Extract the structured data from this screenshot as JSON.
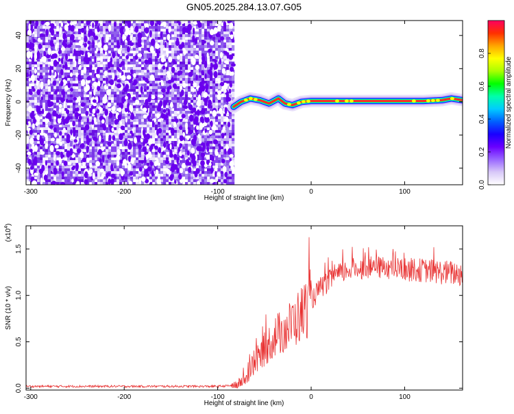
{
  "title": "GN05.2025.284.13.07.G05",
  "chart_data": [
    {
      "type": "heatmap",
      "title": "GN05.2025.284.13.07.G05",
      "xlabel": "Height of straight line (km)",
      "ylabel": "Frequency (Hz)",
      "xlim": [
        -305,
        162
      ],
      "ylim": [
        -50,
        49
      ],
      "xticks": [
        -300,
        -200,
        -100,
        0,
        100
      ],
      "yticks": [
        -40,
        -20,
        0,
        20,
        40
      ],
      "noise_region_end_km": -83,
      "signal_track": {
        "x": [
          -83,
          -75,
          -65,
          -55,
          -45,
          -35,
          -28,
          -20,
          -10,
          0,
          20,
          40,
          60,
          80,
          100,
          120,
          140,
          150,
          162
        ],
        "y": [
          -3,
          0,
          2,
          1,
          -1,
          2,
          -1,
          -2,
          0,
          0.5,
          0.5,
          0.5,
          0.5,
          0.5,
          0.5,
          0.5,
          1,
          2,
          1
        ]
      },
      "colorbar": {
        "label": "Normalized spectral amplitude",
        "range": [
          0,
          1
        ],
        "ticks": [
          "0.0",
          "0.2",
          "0.4",
          "0.6",
          "0.8"
        ],
        "colormap": [
          "#ffffff",
          "#d8c8f8",
          "#9966ff",
          "#6a00ff",
          "#1a00ff",
          "#0060ff",
          "#00ccff",
          "#00ffaa",
          "#00ff00",
          "#aaff00",
          "#ffff00",
          "#ffa500",
          "#ff3000",
          "#ff0060"
        ]
      }
    },
    {
      "type": "line",
      "xlabel": "Height of straight line (km)",
      "ylabel": "SNR (10 * v/v)",
      "scale_label": "(x10",
      "scale_exponent": "4",
      "xlim": [
        -305,
        162
      ],
      "ylim": [
        -0.02,
        1.75
      ],
      "xticks": [
        -300,
        -200,
        -100,
        0,
        100
      ],
      "yticks": [
        "0.0",
        "0.5",
        "1.0",
        "1.5"
      ],
      "color": "#e83030",
      "trend": {
        "x": [
          -305,
          -100,
          -80,
          -70,
          -55,
          -40,
          -25,
          -10,
          0,
          10,
          25,
          40,
          60,
          80,
          100,
          120,
          140,
          162
        ],
        "y": [
          0.02,
          0.02,
          0.03,
          0.1,
          0.35,
          0.55,
          0.65,
          0.8,
          0.95,
          1.08,
          1.2,
          1.28,
          1.3,
          1.3,
          1.28,
          1.27,
          1.25,
          1.23
        ]
      }
    }
  ]
}
